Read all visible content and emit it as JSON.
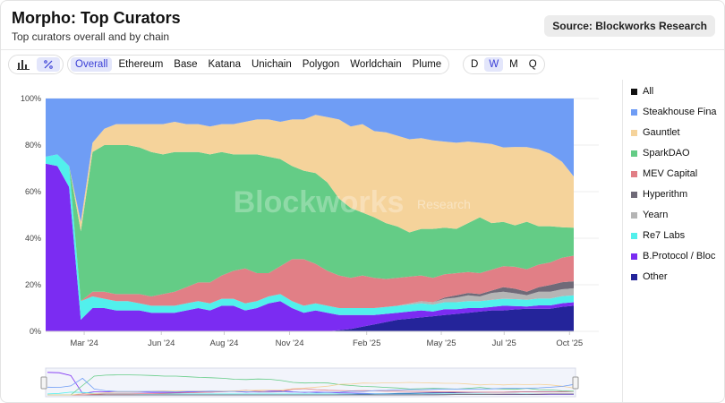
{
  "header": {
    "title": "Morpho: Top Curators",
    "subtitle": "Top curators overall and by chain",
    "source_label": "Source: Blockworks Research"
  },
  "toolbar": {
    "view_icons": [
      "bar-chart-icon",
      "percent-icon"
    ],
    "active_view": "percent-icon",
    "chains": [
      "Overall",
      "Ethereum",
      "Base",
      "Katana",
      "Unichain",
      "Polygon",
      "Worldchain",
      "Plume"
    ],
    "active_chain": "Overall",
    "periods": [
      "D",
      "W",
      "M",
      "Q"
    ],
    "active_period": "W"
  },
  "watermark": {
    "main": "Blockworks",
    "sub": "Research"
  },
  "legend": {
    "items": [
      {
        "label": "All",
        "color": "#111111"
      },
      {
        "label": "Steakhouse Fina",
        "color": "#6f9df5"
      },
      {
        "label": "Gauntlet",
        "color": "#f5d39b"
      },
      {
        "label": "SparkDAO",
        "color": "#64cc86"
      },
      {
        "label": "MEV Capital",
        "color": "#e17f86"
      },
      {
        "label": "Hyperithm",
        "color": "#6f6a78"
      },
      {
        "label": "Yearn",
        "color": "#b5b5b5"
      },
      {
        "label": "Re7 Labs",
        "color": "#52f0ec"
      },
      {
        "label": "B.Protocol / Bloc",
        "color": "#7b2cf2"
      },
      {
        "label": "Other",
        "color": "#24249a"
      }
    ]
  },
  "chart_data": {
    "type": "area",
    "stacked": true,
    "normalized_percent": true,
    "x": [
      "2024-01-15",
      "2024-01-29",
      "2024-02-12",
      "2024-02-26",
      "2024-03-11",
      "2024-03-25",
      "2024-04-08",
      "2024-04-22",
      "2024-05-06",
      "2024-05-20",
      "2024-06-03",
      "2024-06-17",
      "2024-07-01",
      "2024-07-15",
      "2024-07-29",
      "2024-08-12",
      "2024-08-26",
      "2024-09-09",
      "2024-09-23",
      "2024-10-07",
      "2024-10-21",
      "2024-11-04",
      "2024-11-18",
      "2024-12-02",
      "2024-12-16",
      "2024-12-30",
      "2025-01-13",
      "2025-01-27",
      "2025-02-10",
      "2025-02-24",
      "2025-03-10",
      "2025-03-24",
      "2025-04-07",
      "2025-04-21",
      "2025-05-05",
      "2025-05-19",
      "2025-06-02",
      "2025-06-16",
      "2025-06-30",
      "2025-07-14",
      "2025-07-28",
      "2025-08-11",
      "2025-08-25",
      "2025-09-08",
      "2025-09-22",
      "2025-10-06"
    ],
    "x_tick_labels": [
      "Mar '24",
      "Jun '24",
      "Aug '24",
      "Nov '24",
      "Feb '25",
      "May '25",
      "Jul '25",
      "Oct '25"
    ],
    "x_tick_dates": [
      "2024-03-01",
      "2024-06-01",
      "2024-08-15",
      "2024-11-01",
      "2025-02-01",
      "2025-05-01",
      "2025-07-15",
      "2025-10-01"
    ],
    "y_tick_labels": [
      "0%",
      "20%",
      "40%",
      "60%",
      "80%",
      "100%"
    ],
    "ylim": [
      0,
      100
    ],
    "grid": true,
    "legend_position": "right",
    "series": [
      {
        "name": "Other",
        "color": "#24249a",
        "values": [
          0,
          0,
          0,
          0,
          0,
          0,
          0,
          0,
          0,
          0,
          0,
          0,
          0,
          0,
          0,
          0,
          0,
          0,
          0,
          0,
          0,
          0,
          0,
          0,
          0,
          0.5,
          1,
          2,
          3,
          4,
          5,
          5.5,
          6,
          6.5,
          7,
          7.5,
          8,
          8.5,
          9,
          9,
          9.5,
          10,
          10,
          10,
          10.5,
          11
        ]
      },
      {
        "name": "B.Protocol / Bloc",
        "color": "#7b2cf2",
        "values": [
          72,
          71,
          62,
          5,
          10,
          10,
          9,
          9,
          9,
          8,
          8,
          8,
          9,
          10,
          9,
          11,
          11,
          9,
          10,
          12,
          13,
          10,
          8,
          9,
          8,
          6.5,
          6,
          5,
          4,
          3.5,
          3,
          3,
          3,
          2,
          2.5,
          2,
          2,
          1.5,
          1.5,
          2,
          1.5,
          1,
          1.5,
          1.5,
          1.5,
          1.5
        ]
      },
      {
        "name": "Re7 Labs",
        "color": "#52f0ec",
        "values": [
          3,
          5,
          9,
          8,
          5,
          4,
          4,
          4,
          3,
          3,
          3,
          3,
          3,
          3,
          3,
          3,
          3,
          3,
          3,
          3,
          3,
          3,
          3,
          3,
          3,
          3,
          3,
          3,
          3,
          3,
          3,
          3,
          3,
          3,
          3,
          3,
          3,
          3,
          3,
          3,
          3,
          3,
          3,
          3,
          3,
          3
        ]
      },
      {
        "name": "Yearn",
        "color": "#b5b5b5",
        "values": [
          0,
          0,
          0,
          0,
          0,
          0,
          0,
          0,
          0,
          0,
          0,
          0,
          0,
          0,
          0,
          0,
          0,
          0,
          0,
          0,
          0,
          0,
          0,
          0,
          0,
          0,
          0,
          0,
          0,
          0,
          0,
          0.5,
          1,
          1,
          1.5,
          2,
          2.5,
          2,
          3,
          3,
          2.5,
          2,
          3,
          3,
          3,
          3
        ]
      },
      {
        "name": "Hyperithm",
        "color": "#6f6a78",
        "values": [
          0,
          0,
          0,
          0,
          0,
          0,
          0,
          0,
          0,
          0,
          0,
          0,
          0,
          0,
          0,
          0,
          0,
          0,
          0,
          0,
          0,
          0,
          0,
          0,
          0,
          0,
          0,
          0,
          0,
          0,
          0,
          0,
          0,
          0,
          0.5,
          1,
          1,
          1,
          1,
          2,
          2,
          1.5,
          2,
          3,
          3,
          3
        ]
      },
      {
        "name": "MEV Capital",
        "color": "#e17f86",
        "values": [
          0,
          0,
          0,
          0,
          2,
          3,
          3,
          3,
          4,
          4,
          5,
          6,
          7,
          8,
          9,
          10,
          12,
          15,
          12,
          10,
          12,
          18,
          20,
          17,
          15,
          14,
          13,
          14,
          13,
          12,
          12,
          11.5,
          11,
          10.5,
          10,
          9.5,
          9,
          9,
          9,
          9,
          9.5,
          10,
          10,
          10,
          10.5,
          11
        ]
      },
      {
        "name": "SparkDAO",
        "color": "#64cc86",
        "values": [
          0,
          0,
          0,
          30,
          60,
          63,
          64,
          64,
          63,
          62,
          60,
          60,
          58,
          56,
          55,
          53,
          50,
          49,
          51,
          50,
          46,
          40,
          38,
          39,
          38,
          33,
          30,
          27,
          26,
          24,
          22,
          19,
          20,
          21,
          20,
          19,
          21,
          24,
          20,
          19,
          18,
          21,
          17,
          16,
          13,
          12
        ]
      },
      {
        "name": "Gauntlet",
        "color": "#f5d39b",
        "values": [
          0,
          0,
          0,
          4,
          4,
          7,
          9,
          9,
          10,
          12,
          13,
          13,
          12,
          12,
          12,
          12,
          13,
          14,
          15,
          16,
          16,
          20,
          22,
          25,
          28,
          34,
          35,
          38,
          37,
          39,
          39,
          40,
          39,
          38,
          37,
          37,
          35,
          32,
          34,
          32,
          34,
          33,
          34,
          32,
          28,
          22
        ]
      },
      {
        "name": "Steakhouse Fina",
        "color": "#6f9df5",
        "values": [
          25,
          24,
          29,
          53,
          19,
          13,
          11,
          11,
          11,
          11,
          11,
          10,
          11,
          11,
          12,
          11,
          11,
          10,
          9,
          9,
          10,
          9,
          9,
          7,
          8,
          9,
          12,
          11,
          14,
          14.5,
          16,
          17.5,
          17,
          18,
          18.5,
          19,
          18.5,
          19,
          19.5,
          21,
          21,
          21.5,
          22.5,
          24.5,
          27,
          33.5
        ]
      }
    ]
  }
}
